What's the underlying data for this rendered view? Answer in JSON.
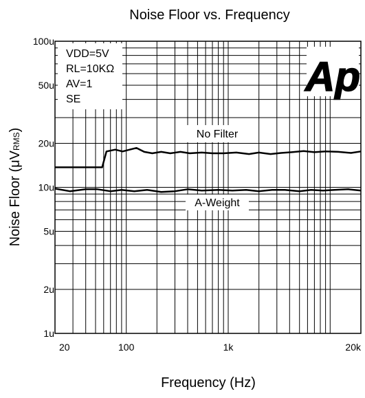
{
  "chart_data": {
    "type": "line",
    "title": "Noise Floor vs. Frequency",
    "xlabel": "Frequency (Hz)",
    "ylabel": "Noise Floor (μV",
    "ylabel_sub": "RMS",
    "ylabel_suffix": ")",
    "x_scale": "log",
    "y_scale": "log",
    "xlim": [
      20,
      20000
    ],
    "ylim": [
      1e-06,
      0.0001
    ],
    "x_ticks": [
      {
        "value": 20,
        "label": "20"
      },
      {
        "value": 100,
        "label": "100"
      },
      {
        "value": 1000,
        "label": "1k"
      },
      {
        "value": 20000,
        "label": "20k"
      }
    ],
    "y_ticks": [
      {
        "value": 0.0001,
        "label": "100u"
      },
      {
        "value": 5e-05,
        "label": "50u"
      },
      {
        "value": 2e-05,
        "label": "20u"
      },
      {
        "value": 1e-05,
        "label": "10u"
      },
      {
        "value": 5e-06,
        "label": "5u"
      },
      {
        "value": 2e-06,
        "label": "2u"
      },
      {
        "value": 1e-06,
        "label": "1u"
      }
    ],
    "grid": true,
    "conditions": [
      "VDD=5V",
      "RL=10KΩ",
      "AV=1",
      "SE"
    ],
    "logo": "Ap",
    "series": [
      {
        "name": "No Filter",
        "x": [
          20,
          58,
          64,
          78,
          92,
          108,
          126,
          150,
          180,
          220,
          270,
          340,
          420,
          550,
          700,
          900,
          1200,
          1600,
          2000,
          2600,
          3300,
          4200,
          5500,
          7000,
          9000,
          12000,
          16000,
          20000
        ],
        "y": [
          1.37e-05,
          1.37e-05,
          1.76e-05,
          1.81e-05,
          1.76e-05,
          1.81e-05,
          1.86e-05,
          1.75e-05,
          1.71e-05,
          1.75e-05,
          1.71e-05,
          1.75e-05,
          1.71e-05,
          1.73e-05,
          1.71e-05,
          1.71e-05,
          1.73e-05,
          1.69e-05,
          1.73e-05,
          1.69e-05,
          1.72e-05,
          1.74e-05,
          1.77e-05,
          1.74e-05,
          1.76e-05,
          1.75e-05,
          1.72e-05,
          1.76e-05
        ]
      },
      {
        "name": "A-Weight",
        "x": [
          20,
          28,
          40,
          52,
          70,
          90,
          120,
          160,
          220,
          300,
          400,
          550,
          800,
          1100,
          1500,
          2000,
          2700,
          3600,
          5000,
          6500,
          8500,
          11000,
          15000,
          20000
        ],
        "y": [
          9.8e-06,
          9.4e-06,
          9.7e-06,
          9.7e-06,
          9.4e-06,
          9.6e-06,
          9.4e-06,
          9.6e-06,
          9.3e-06,
          9.4e-06,
          9.7e-06,
          9.5e-06,
          9.6e-06,
          9.5e-06,
          9.6e-06,
          9.4e-06,
          9.6e-06,
          9.6e-06,
          9.4e-06,
          9.6e-06,
          9.5e-06,
          9.6e-06,
          9.7e-06,
          9.5e-06
        ]
      }
    ]
  }
}
